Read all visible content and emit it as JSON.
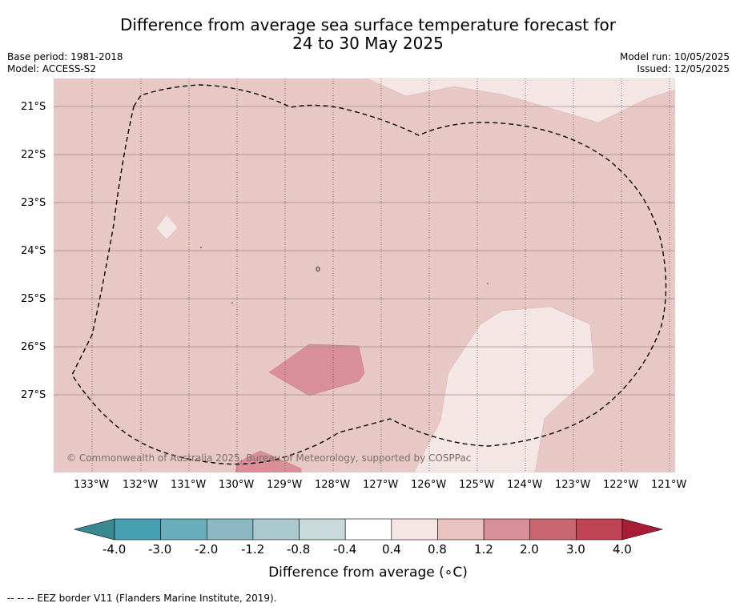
{
  "header": {
    "title_line1": "Difference from average sea surface temperature forecast for",
    "title_line2": "24 to 30 May 2025",
    "base_period": "Base period: 1981-2018",
    "model": "Model: ACCESS-S2",
    "model_run": "Model run: 10/05/2025",
    "issued": "Issued: 12/05/2025"
  },
  "map": {
    "lat_labels": [
      "21°S",
      "22°S",
      "23°S",
      "24°S",
      "25°S",
      "26°S",
      "27°S"
    ],
    "lon_labels": [
      "133°W",
      "132°W",
      "131°W",
      "130°W",
      "129°W",
      "128°W",
      "127°W",
      "126°W",
      "125°W",
      "124°W",
      "123°W",
      "122°W",
      "121°W"
    ],
    "copyright": "© Commonwealth of Australia 2025, Bureau of Meteorology, supported by COSPPac",
    "background_color": "#e8c8c4",
    "regions": [
      {
        "name": "0.4 to 0.8",
        "color": "#f4e6e4"
      },
      {
        "name": "1.2 to 2.0",
        "color": "#d88f98"
      }
    ]
  },
  "colorbar": {
    "labels": [
      "-4.0",
      "-3.0",
      "-2.0",
      "-1.2",
      "-0.8",
      "-0.4",
      "0.4",
      "0.8",
      "1.2",
      "2.0",
      "3.0",
      "4.0"
    ],
    "colors": [
      "#3b8792",
      "#46a0b1",
      "#6aaebb",
      "#8ab7c2",
      "#a9c9cd",
      "#c9dadd",
      "#ffffff",
      "#f4e6e4",
      "#e8c3bf",
      "#d88f98",
      "#c9666f",
      "#bf4555",
      "#a91c37"
    ],
    "title": "Difference from average (∘C)"
  },
  "footer": {
    "eez_legend": "--  --  -- EEZ border V11 (Flanders Marine Institute, 2019)."
  }
}
